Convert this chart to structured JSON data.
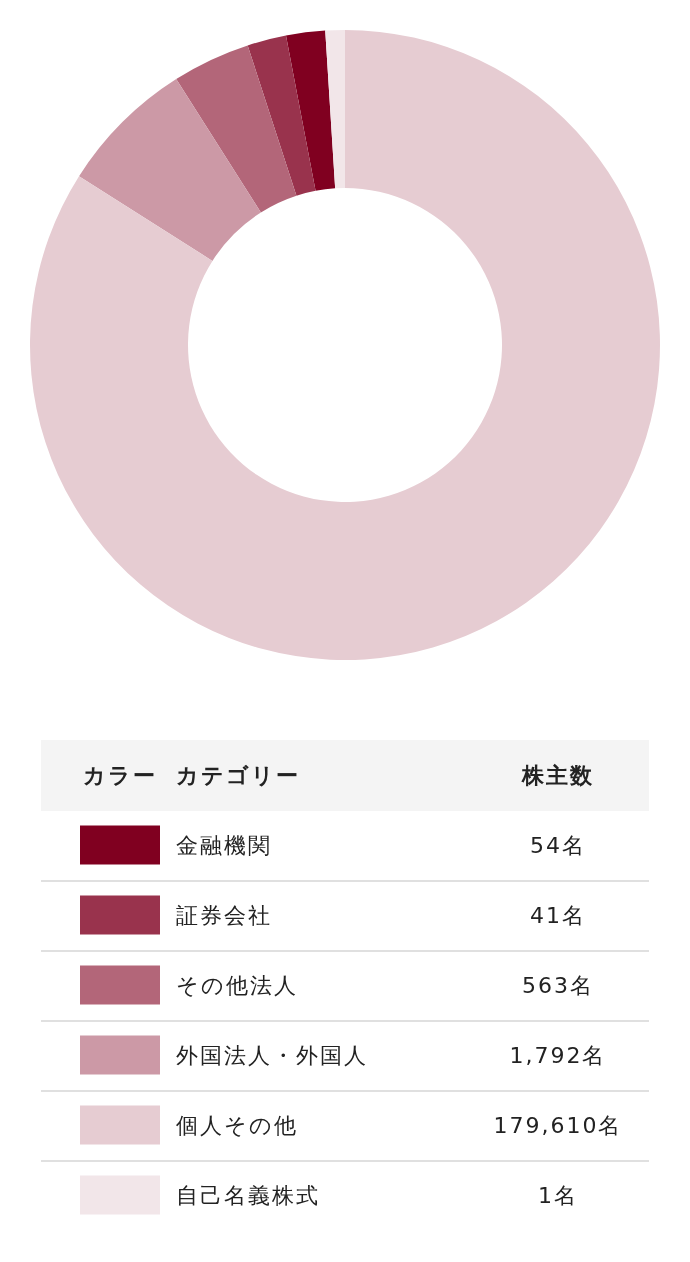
{
  "chart_data": {
    "type": "donut",
    "categories": [
      "金融機関",
      "証券会社",
      "その他法人",
      "外国法人・外国人",
      "個人その他",
      "自己名義株式"
    ],
    "values": [
      2.0,
      2.0,
      4.0,
      7.0,
      84.0,
      1.0
    ],
    "colors": [
      "#800020",
      "#99334d",
      "#b36679",
      "#cc99a6",
      "#e6ccd2",
      "#f2e6e9"
    ],
    "annotations": [
      "カラー",
      "カテゴリー",
      "株主数",
      "54名",
      "41名",
      "563名",
      "1,792名",
      "179,610名",
      "1名"
    ],
    "legend": "bottom"
  }
}
